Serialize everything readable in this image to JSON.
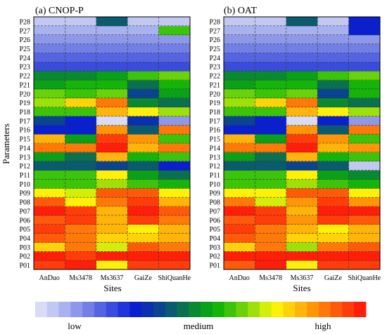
{
  "chart_data": {
    "type": "heatmap",
    "panels": [
      {
        "title": "(a) CNOP-P",
        "xlabel": "Sites",
        "ylabel": "Parameters",
        "x": [
          "AnDuo",
          "Ms3478",
          "Ms3637",
          "GaiZe",
          "ShiQuanHe"
        ],
        "y": [
          "P01",
          "P02",
          "P03",
          "P04",
          "P05",
          "P06",
          "P07",
          "P08",
          "P09",
          "P10",
          "P11",
          "P12",
          "P13",
          "P14",
          "P15",
          "P16",
          "P17",
          "P18",
          "P19",
          "P20",
          "P21",
          "P22",
          "P23",
          "P24",
          "P25",
          "P26",
          "P27",
          "P28"
        ],
        "values": [
          [
            26,
            27,
            20,
            26,
            26
          ],
          [
            27,
            26,
            27,
            27,
            27
          ],
          [
            21,
            24,
            19,
            25,
            24
          ],
          [
            25,
            24,
            21,
            21,
            22
          ],
          [
            26,
            24,
            22,
            20,
            22
          ],
          [
            25,
            26,
            22,
            26,
            24
          ],
          [
            27,
            26,
            22,
            27,
            25
          ],
          [
            25,
            20,
            24,
            26,
            22
          ],
          [
            20,
            19,
            25,
            25,
            20
          ],
          [
            16,
            16,
            18,
            16,
            15
          ],
          [
            16,
            16,
            20,
            14,
            12
          ],
          [
            11,
            11,
            10,
            11,
            8
          ],
          [
            14,
            12,
            22,
            15,
            16
          ],
          [
            24,
            24,
            27,
            22,
            24
          ],
          [
            22,
            14,
            26,
            23,
            16
          ],
          [
            8,
            8,
            23,
            11,
            24
          ],
          [
            10,
            8,
            0,
            9,
            3
          ],
          [
            16,
            16,
            22,
            20,
            18
          ],
          [
            18,
            21,
            24,
            13,
            12
          ],
          [
            17,
            16,
            17,
            10,
            14
          ],
          [
            14,
            15,
            15,
            12,
            15
          ],
          [
            13,
            13,
            14,
            16,
            17
          ],
          [
            6,
            6,
            6,
            6,
            6
          ],
          [
            5,
            5,
            5,
            5,
            5
          ],
          [
            4,
            4,
            4,
            4,
            4
          ],
          [
            3,
            3,
            3,
            3,
            3
          ],
          [
            2,
            2,
            2,
            2,
            16
          ],
          [
            1,
            1,
            11,
            1,
            1
          ]
        ]
      },
      {
        "title": "(b) OAT",
        "xlabel": "Sites",
        "ylabel": "Parameters",
        "x": [
          "AnDuo",
          "Ms3478",
          "Ms3637",
          "GaiZe",
          "ShiQuanHe"
        ],
        "y": [
          "P01",
          "P02",
          "P03",
          "P04",
          "P05",
          "P06",
          "P07",
          "P08",
          "P09",
          "P10",
          "P11",
          "P12",
          "P13",
          "P14",
          "P15",
          "P16",
          "P17",
          "P18",
          "P19",
          "P20",
          "P21",
          "P22",
          "P23",
          "P24",
          "P25",
          "P26",
          "P27",
          "P28"
        ],
        "values": [
          [
            25,
            27,
            20,
            26,
            26
          ],
          [
            27,
            27,
            27,
            27,
            27
          ],
          [
            21,
            24,
            18,
            24,
            25
          ],
          [
            25,
            24,
            21,
            21,
            22
          ],
          [
            26,
            24,
            22,
            20,
            22
          ],
          [
            25,
            26,
            23,
            26,
            25
          ],
          [
            27,
            26,
            22,
            27,
            27
          ],
          [
            24,
            19,
            23,
            26,
            23
          ],
          [
            20,
            20,
            25,
            25,
            20
          ],
          [
            16,
            16,
            18,
            16,
            15
          ],
          [
            16,
            16,
            20,
            14,
            13
          ],
          [
            11,
            11,
            10,
            11,
            1
          ],
          [
            14,
            12,
            22,
            15,
            16
          ],
          [
            24,
            24,
            27,
            22,
            23
          ],
          [
            22,
            14,
            26,
            23,
            16
          ],
          [
            8,
            8,
            23,
            11,
            24
          ],
          [
            10,
            8,
            0,
            8,
            3
          ],
          [
            16,
            16,
            22,
            20,
            18
          ],
          [
            18,
            21,
            24,
            13,
            12
          ],
          [
            17,
            16,
            17,
            10,
            15
          ],
          [
            14,
            15,
            15,
            12,
            15
          ],
          [
            13,
            13,
            14,
            16,
            17
          ],
          [
            6,
            6,
            6,
            6,
            6
          ],
          [
            5,
            5,
            5,
            5,
            5
          ],
          [
            4,
            4,
            4,
            4,
            4
          ],
          [
            3,
            3,
            3,
            3,
            3
          ],
          [
            2,
            2,
            2,
            2,
            8
          ],
          [
            1,
            1,
            11,
            1,
            8
          ]
        ]
      }
    ],
    "colorbar": {
      "labels": [
        "low",
        "medium",
        "high"
      ],
      "colors": [
        "#d8dcf5",
        "#c2c8f2",
        "#a9b1ee",
        "#8e98ea",
        "#727fe6",
        "#5565e2",
        "#3a4cde",
        "#1f34d9",
        "#0a1fcf",
        "#0a2fb0",
        "#0a4490",
        "#0a5a70",
        "#0a7050",
        "#0a8a30",
        "#0aa018",
        "#14b40a",
        "#3cc40a",
        "#6ad20a",
        "#9ee00a",
        "#d2ee0a",
        "#fff00a",
        "#ffd20a",
        "#ffb40a",
        "#ff960a",
        "#ff780a",
        "#ff5a0a",
        "#ff3c0a",
        "#ff1e0a"
      ]
    }
  }
}
